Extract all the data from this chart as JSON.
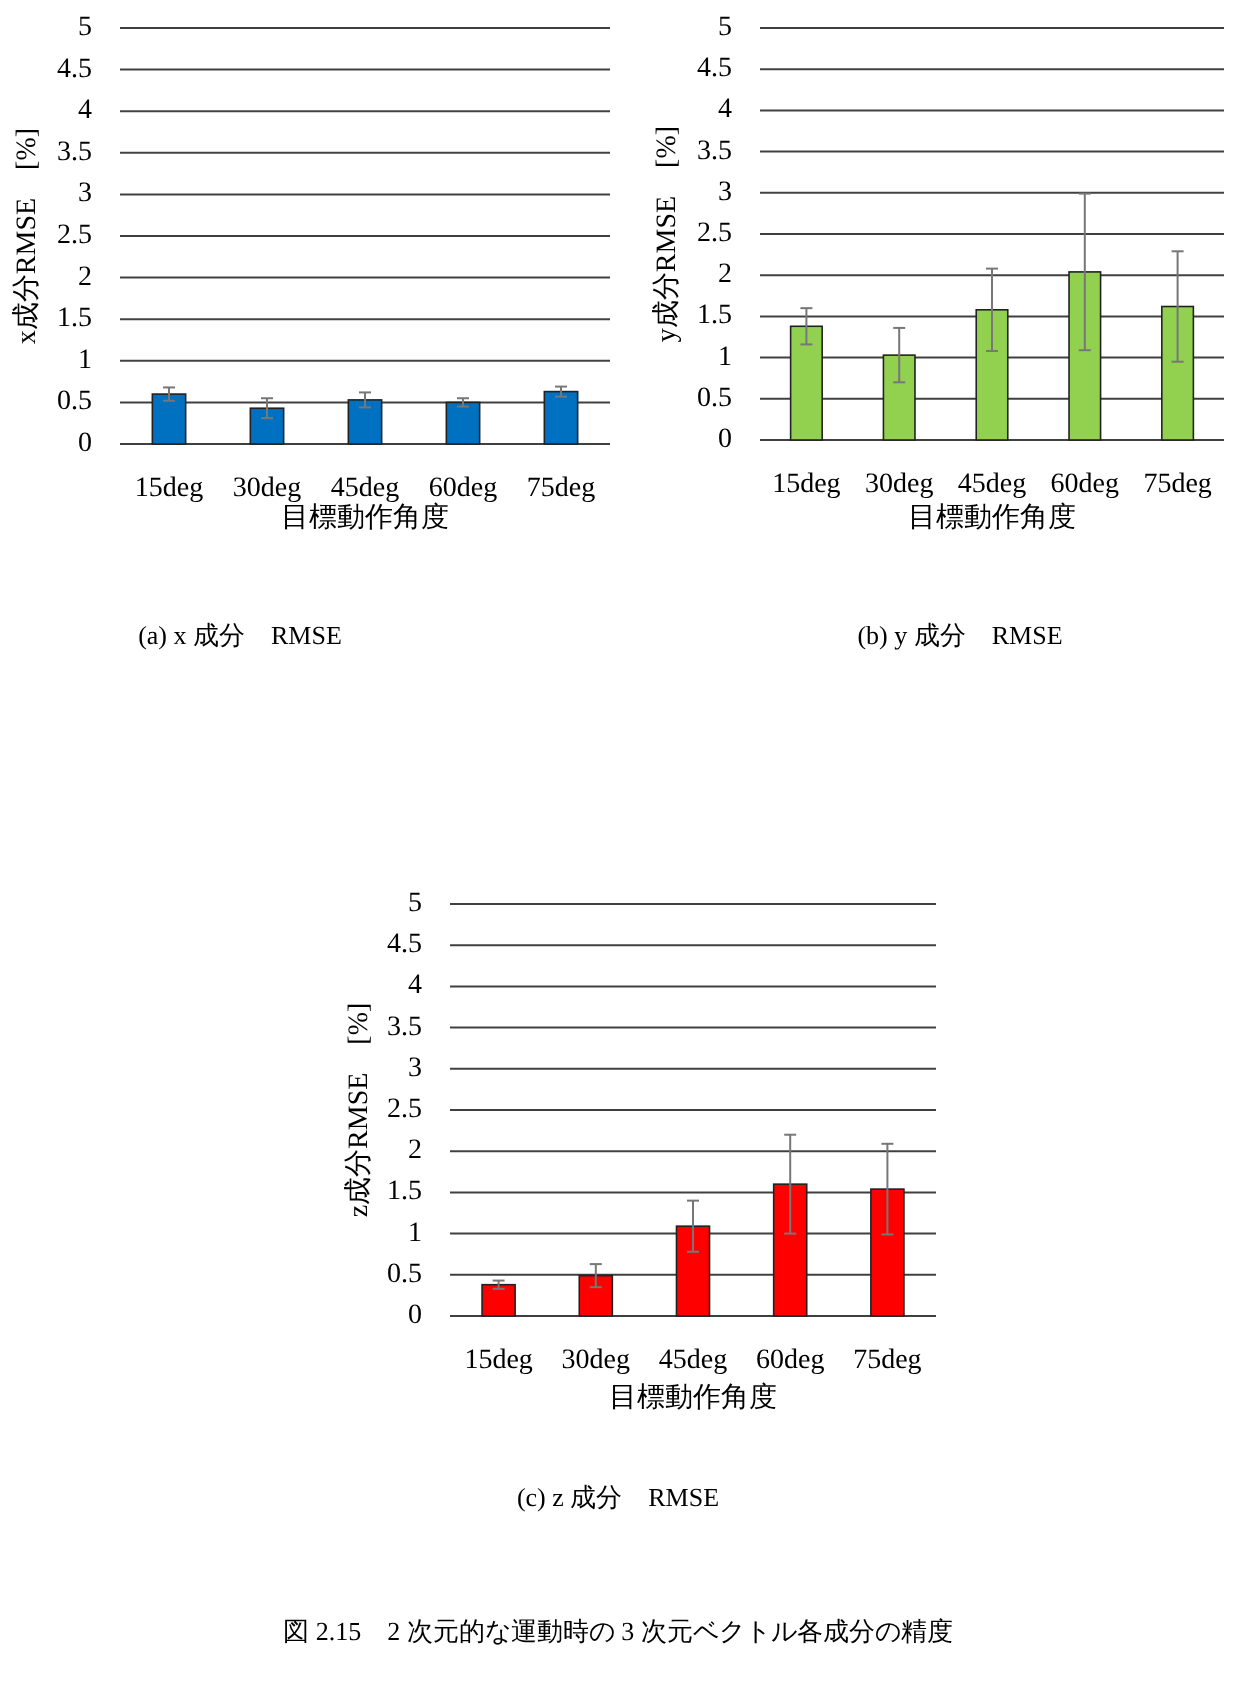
{
  "chart_data": [
    {
      "type": "bar",
      "categories": [
        "15deg",
        "30deg",
        "45deg",
        "60deg",
        "75deg"
      ],
      "ylabel": "x成分RMSE　[%]",
      "xlabel": "目標動作角度",
      "color": "#0070c0",
      "values": [
        0.6,
        0.43,
        0.53,
        0.5,
        0.63
      ],
      "errors": [
        0.08,
        0.12,
        0.09,
        0.05,
        0.06
      ],
      "ylim": [
        0,
        5
      ],
      "yticks": [
        0,
        0.5,
        1,
        1.5,
        2,
        2.5,
        3,
        3.5,
        4,
        4.5,
        5
      ],
      "grid": "y",
      "annotations": [
        "(a) x 成分　RMSE"
      ]
    },
    {
      "type": "bar",
      "categories": [
        "15deg",
        "30deg",
        "45deg",
        "60deg",
        "75deg"
      ],
      "ylabel": "y成分RMSE　[%]",
      "xlabel": "目標動作角度",
      "color": "#92d050",
      "values": [
        1.38,
        1.03,
        1.58,
        2.04,
        1.62
      ],
      "errors": [
        0.22,
        0.33,
        0.5,
        0.95,
        0.67
      ],
      "ylim": [
        0,
        5
      ],
      "yticks": [
        0,
        0.5,
        1,
        1.5,
        2,
        2.5,
        3,
        3.5,
        4,
        4.5,
        5
      ],
      "grid": "y",
      "annotations": [
        "(b) y 成分　RMSE"
      ]
    },
    {
      "type": "bar",
      "categories": [
        "15deg",
        "30deg",
        "45deg",
        "60deg",
        "75deg"
      ],
      "ylabel": "z成分RMSE　[%]",
      "xlabel": "目標動作角度",
      "color": "#ff0000",
      "values": [
        0.38,
        0.49,
        1.09,
        1.6,
        1.54
      ],
      "errors": [
        0.05,
        0.14,
        0.31,
        0.6,
        0.55
      ],
      "ylim": [
        0,
        5
      ],
      "yticks": [
        0,
        0.5,
        1,
        1.5,
        2,
        2.5,
        3,
        3.5,
        4,
        4.5,
        5
      ],
      "grid": "y",
      "annotations": [
        "(c) z 成分　RMSE",
        "図 2.15　2 次元的な運動時の 3 次元ベクトル各成分の精度"
      ]
    }
  ]
}
